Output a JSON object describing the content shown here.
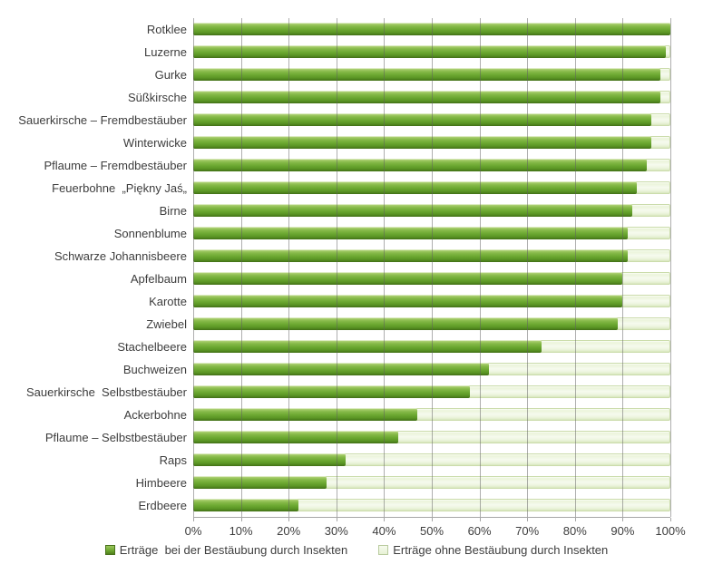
{
  "chart_data": {
    "type": "bar",
    "orientation": "horizontal",
    "title": "",
    "xlabel": "",
    "ylabel": "",
    "xlim": [
      0,
      100
    ],
    "grid": true,
    "legend_position": "bottom",
    "x_ticks": [
      "0%",
      "10%",
      "20%",
      "30%",
      "40%",
      "50%",
      "60%",
      "70%",
      "80%",
      "90%",
      "100%"
    ],
    "categories": [
      "Rotklee",
      "Luzerne",
      "Gurke",
      "Süßkirsche",
      "Sauerkirsche – Fremdbestäuber",
      "Winterwicke",
      "Pflaume – Fremdbestäuber",
      "Feuerbohne  „Piękny Jaś„",
      "Birne",
      "Sonnenblume",
      "Schwarze Johannisbeere",
      "Apfelbaum",
      "Karotte",
      "Zwiebel",
      "Stachelbeere",
      "Buchweizen",
      "Sauerkirsche  Selbstbestäuber",
      "Ackerbohne",
      "Pflaume – Selbstbestäuber",
      "Raps",
      "Himbeere",
      "Erdbeere"
    ],
    "series": [
      {
        "name": "Erträge  bei der Bestäubung durch Insekten",
        "color": "#71AB35",
        "values": [
          100,
          99,
          98,
          98,
          96,
          96,
          95,
          93,
          92,
          91,
          91,
          90,
          90,
          89,
          73,
          62,
          58,
          47,
          43,
          32,
          28,
          22
        ]
      },
      {
        "name": "Erträge ohne Bestäubung durch Insekten",
        "color": "#EDF5E0",
        "values": [
          100,
          100,
          100,
          100,
          100,
          100,
          100,
          100,
          100,
          100,
          100,
          100,
          100,
          100,
          100,
          100,
          100,
          100,
          100,
          100,
          100,
          100
        ]
      }
    ]
  },
  "colors": {
    "bar_with_insects": "#71AB35",
    "bar_without_insects": "#EDF5E0",
    "gridline": "#5F5F5F",
    "axis": "#A6A6A6",
    "text": "#3D3D3D",
    "background": "#FFFFFF"
  }
}
